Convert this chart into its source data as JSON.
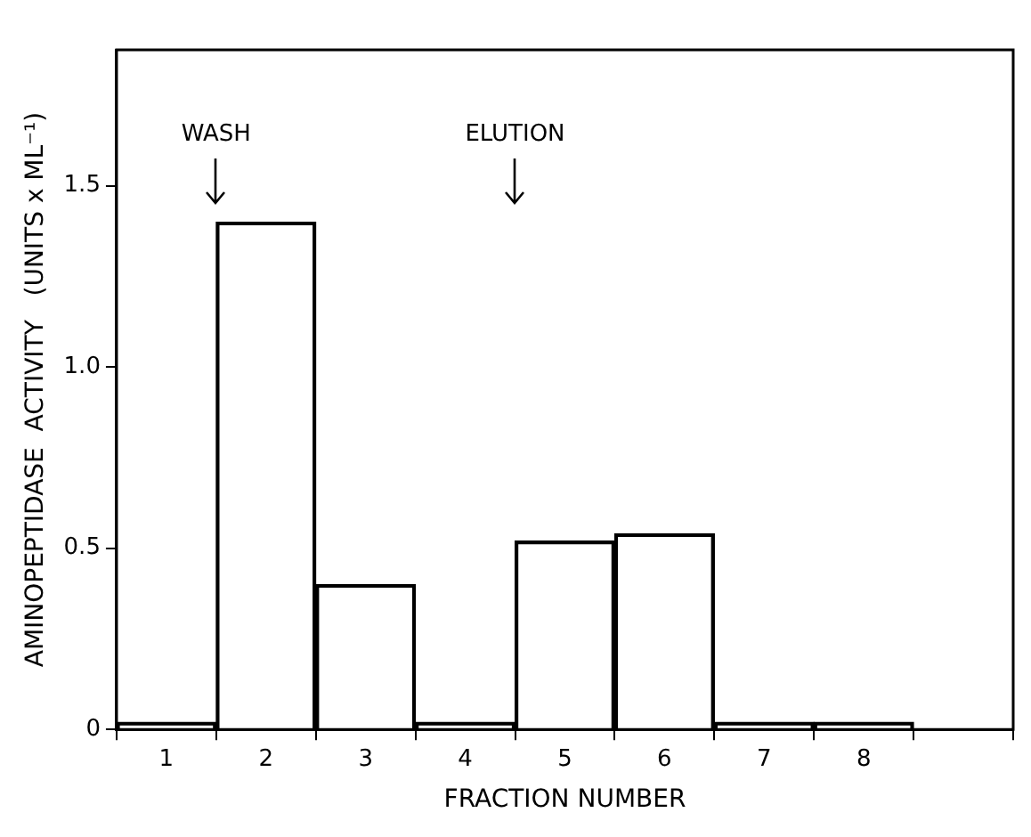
{
  "chart_data": {
    "type": "bar",
    "xlabel": "FRACTION NUMBER",
    "ylabel": "AMINOPEPTIDASE  ACTIVITY   (UNITS x ML⁻¹)",
    "categories": [
      "1",
      "2",
      "3",
      "4",
      "5",
      "6",
      "7",
      "8",
      null
    ],
    "values": [
      0.02,
      1.4,
      0.4,
      0.02,
      0.52,
      0.54,
      0.02,
      0.02,
      null
    ],
    "color": "#000000",
    "ylim": [
      0,
      1.875
    ],
    "yticks": [
      0,
      0.5,
      {
        "value": 1,
        "label": "1.0"
      },
      1.5
    ],
    "grid": false,
    "annotations": [
      "WASH",
      "ELUTION"
    ]
  }
}
